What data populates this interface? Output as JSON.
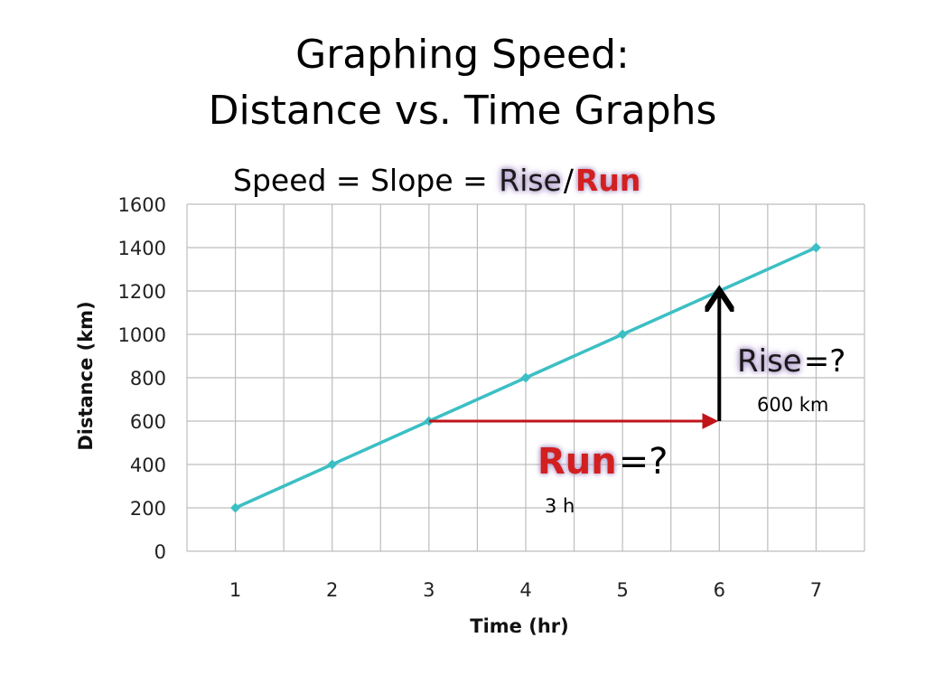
{
  "slide": {
    "title_line1": "Graphing Speed:",
    "title_line2": "Distance vs. Time Graphs",
    "formula_prefix": "Speed = Slope = ",
    "formula_rise": "Rise",
    "formula_slash": "/",
    "formula_run": "Run"
  },
  "annotations": {
    "rise_word": "Rise",
    "rise_question": "=?",
    "rise_answer": "600 km",
    "run_word": "Run",
    "run_question": "=?",
    "run_answer": "3 h",
    "rise_arrow": {
      "x": 6,
      "from_y": 600,
      "to_y": 1200,
      "color": "#000000"
    },
    "run_arrow": {
      "y": 600,
      "from_x": 3,
      "to_x": 6,
      "color": "#c0141a"
    }
  },
  "chart_data": {
    "type": "line",
    "x": [
      1,
      2,
      3,
      4,
      5,
      6,
      7
    ],
    "series": [
      {
        "values": [
          200,
          400,
          600,
          800,
          1000,
          1200,
          1400
        ],
        "color": "#3bbfc4"
      }
    ],
    "xlabel": "Time (hr)",
    "ylabel": "Distance (km)",
    "x_ticks": [
      "1",
      "2",
      "3",
      "4",
      "5",
      "6",
      "7"
    ],
    "y_ticks": [
      "0",
      "200",
      "400",
      "600",
      "800",
      "1000",
      "1200",
      "1400",
      "1600"
    ],
    "ylim": [
      0,
      1600
    ],
    "grid": true,
    "grid_color": "#bdbdbd"
  }
}
